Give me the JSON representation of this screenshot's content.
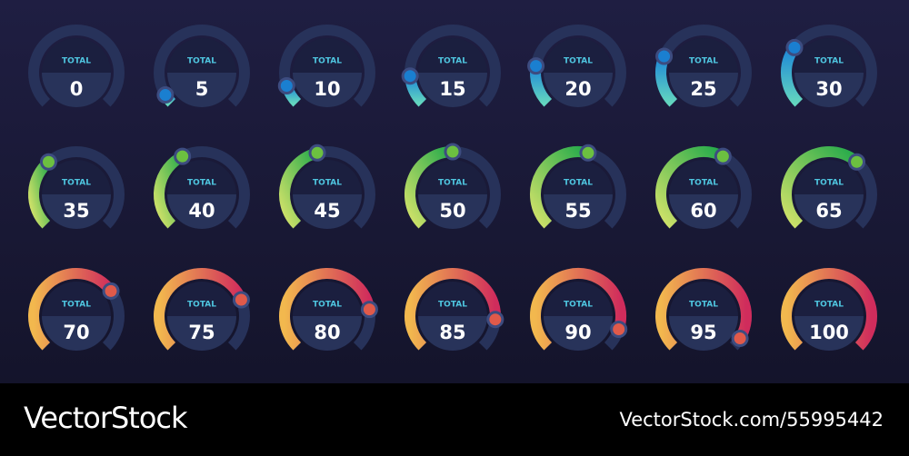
{
  "rows": [
    {
      "color_start": "#1c86d8",
      "color_end": "#63d6bf",
      "knob": "#1a7fd0",
      "gauges": [
        {
          "label": "TOTAL",
          "value": 0
        },
        {
          "label": "TOTAL",
          "value": 5
        },
        {
          "label": "TOTAL",
          "value": 10
        },
        {
          "label": "TOTAL",
          "value": 15
        },
        {
          "label": "TOTAL",
          "value": 20
        },
        {
          "label": "TOTAL",
          "value": 25
        },
        {
          "label": "TOTAL",
          "value": 30
        }
      ]
    },
    {
      "color_start": "#d4e36a",
      "color_end": "#22a94a",
      "knob": "#6cc040",
      "gauges": [
        {
          "label": "TOTAL",
          "value": 35
        },
        {
          "label": "TOTAL",
          "value": 40
        },
        {
          "label": "TOTAL",
          "value": 45
        },
        {
          "label": "TOTAL",
          "value": 50
        },
        {
          "label": "TOTAL",
          "value": 55
        },
        {
          "label": "TOTAL",
          "value": 60
        },
        {
          "label": "TOTAL",
          "value": 65
        }
      ]
    },
    {
      "color_start": "#f2b84e",
      "color_end": "#d02c5c",
      "knob": "#e05a4a",
      "gauges": [
        {
          "label": "TOTAL",
          "value": 70
        },
        {
          "label": "TOTAL",
          "value": 75
        },
        {
          "label": "TOTAL",
          "value": 80
        },
        {
          "label": "TOTAL",
          "value": 85
        },
        {
          "label": "TOTAL",
          "value": 90
        },
        {
          "label": "TOTAL",
          "value": 95
        },
        {
          "label": "TOTAL",
          "value": 100
        }
      ]
    }
  ],
  "footer": {
    "brand": "VectorStock",
    "id": "VectorStock.com/55995442"
  }
}
